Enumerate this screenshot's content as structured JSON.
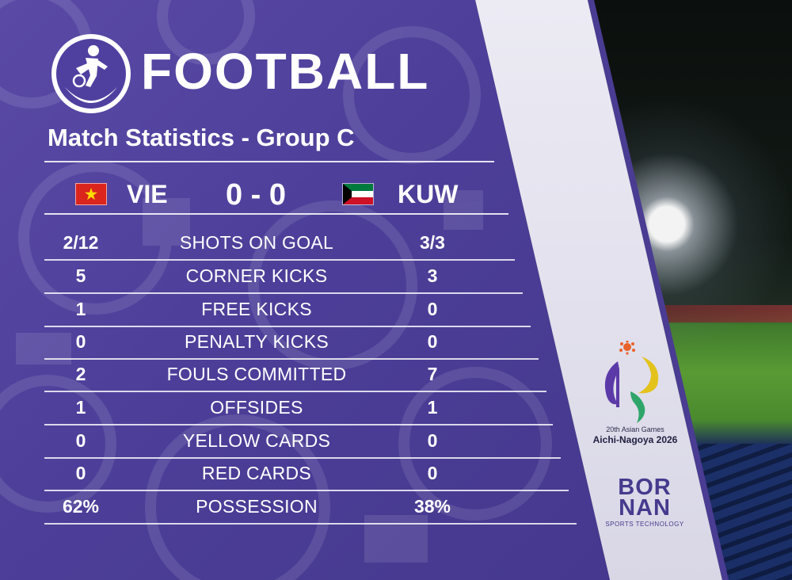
{
  "header": {
    "sport_title": "FOOTBALL",
    "subtitle": "Match Statistics - Group C"
  },
  "score_line": {
    "home_code": "VIE",
    "score": "0 - 0",
    "away_code": "KUW"
  },
  "stats": [
    {
      "home": "2/12",
      "label": "SHOTS ON GOAL",
      "away": "3/3"
    },
    {
      "home": "5",
      "label": "CORNER KICKS",
      "away": "3"
    },
    {
      "home": "1",
      "label": "FREE KICKS",
      "away": "0"
    },
    {
      "home": "0",
      "label": "PENALTY KICKS",
      "away": "0"
    },
    {
      "home": "2",
      "label": "FOULS COMMITTED",
      "away": "7"
    },
    {
      "home": "1",
      "label": "OFFSIDES",
      "away": "1"
    },
    {
      "home": "0",
      "label": "YELLOW CARDS",
      "away": "0"
    },
    {
      "home": "0",
      "label": "RED CARDS",
      "away": "0"
    },
    {
      "home": "62%",
      "label": "POSSESSION",
      "away": "38%"
    }
  ],
  "games_logo": {
    "line1": "20th Asian Games",
    "line2": "Aichi-Nagoya 2026"
  },
  "sponsor": {
    "name_top": "BOR",
    "name_bottom": "NAN",
    "tagline": "SPORTS TECHNOLOGY"
  },
  "colors": {
    "panel": "#4d3f99",
    "band": "#e6e5f0",
    "text": "#ffffff",
    "sponsor": "#463a8e"
  },
  "icons": [
    "football-player-icon",
    "vietnam-flag-icon",
    "kuwait-flag-icon",
    "asian-games-logo-icon"
  ]
}
